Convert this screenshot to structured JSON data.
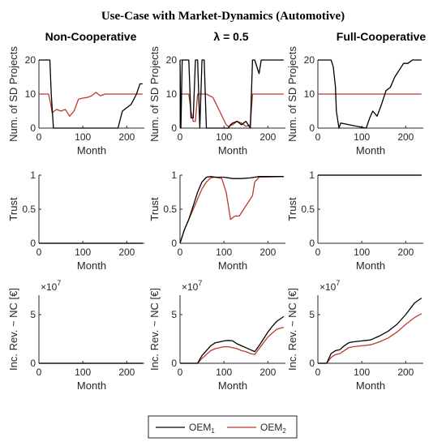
{
  "figure": {
    "title": "Use-Case with Market-Dynamics (Automotive)",
    "columns": [
      "Non-Cooperative",
      "λ = 0.5",
      "Full-Cooperative"
    ]
  },
  "legend": {
    "entries": [
      {
        "base": "OEM",
        "sub": "1",
        "color": "#000000"
      },
      {
        "base": "OEM",
        "sub": "2",
        "color": "#c0392b"
      }
    ]
  },
  "colors": {
    "oem1": "#000000",
    "oem2": "#c0392b",
    "axis": "#262626"
  },
  "chart_data": [
    {
      "type": "line",
      "id": "nc-projects",
      "row": 0,
      "col": 0,
      "xlabel": "Month",
      "ylabel": "Num. of SD Projects",
      "xlim": [
        0,
        240
      ],
      "ylim": [
        0,
        20
      ],
      "xticks": [
        0,
        100,
        200
      ],
      "yticks": [
        0,
        10,
        20
      ],
      "series": [
        {
          "name": "OEM1",
          "x": [
            0,
            25,
            28,
            33,
            180,
            190,
            210,
            222,
            230,
            236
          ],
          "y": [
            20,
            20,
            10,
            0,
            0,
            5,
            7,
            10,
            13,
            13
          ]
        },
        {
          "name": "OEM2",
          "x": [
            0,
            22,
            27,
            30,
            40,
            50,
            60,
            70,
            80,
            90,
            100,
            110,
            120,
            130,
            140,
            150,
            160,
            236
          ],
          "y": [
            10,
            10,
            7,
            4.5,
            5.5,
            5,
            5.5,
            3.5,
            5,
            8.5,
            8.8,
            9,
            9.5,
            10.5,
            9.5,
            10,
            10,
            10
          ]
        }
      ]
    },
    {
      "type": "line",
      "id": "l05-projects",
      "row": 0,
      "col": 1,
      "xlabel": "Month",
      "ylabel": "Num. of SD Projects",
      "xlim": [
        0,
        240
      ],
      "ylim": [
        0,
        20
      ],
      "xticks": [
        0,
        100,
        200
      ],
      "yticks": [
        0,
        10,
        20
      ],
      "series": [
        {
          "name": "OEM1",
          "x": [
            0,
            2,
            5,
            10,
            20,
            25,
            30,
            35,
            40,
            45,
            50,
            55,
            60,
            65,
            70,
            110,
            115,
            120,
            130,
            140,
            150,
            160,
            165,
            170,
            180,
            185,
            195,
            236
          ],
          "y": [
            20,
            0,
            20,
            20,
            20,
            3,
            3,
            20,
            20,
            0,
            20,
            20,
            0,
            0,
            0,
            0,
            1,
            1.5,
            2,
            1,
            2,
            0,
            20,
            20,
            16,
            20,
            20,
            20
          ]
        },
        {
          "name": "OEM2",
          "x": [
            0,
            20,
            25,
            30,
            35,
            40,
            60,
            75,
            90,
            105,
            110,
            120,
            130,
            140,
            150,
            160,
            165,
            170,
            236
          ],
          "y": [
            10,
            10,
            5,
            2,
            2,
            10,
            10,
            9,
            5,
            1,
            0.5,
            1,
            2,
            1.5,
            0.5,
            1,
            10,
            10,
            10
          ]
        }
      ]
    },
    {
      "type": "line",
      "id": "fc-projects",
      "row": 0,
      "col": 2,
      "xlabel": "Month",
      "ylabel": "Num. of SD Projects",
      "xlim": [
        0,
        240
      ],
      "ylim": [
        0,
        20
      ],
      "xticks": [
        0,
        100,
        200
      ],
      "yticks": [
        0,
        10,
        20
      ],
      "series": [
        {
          "name": "OEM1",
          "x": [
            0,
            30,
            35,
            40,
            42,
            48,
            52,
            110,
            118,
            125,
            135,
            145,
            155,
            165,
            175,
            185,
            195,
            205,
            215,
            236
          ],
          "y": [
            20,
            20,
            18,
            12,
            5,
            0,
            1.5,
            0,
            3,
            5,
            3.5,
            7,
            11,
            12,
            15,
            17,
            19,
            19,
            20,
            20
          ]
        },
        {
          "name": "OEM2",
          "x": [
            0,
            236
          ],
          "y": [
            10,
            10
          ]
        }
      ]
    },
    {
      "type": "line",
      "id": "nc-trust",
      "row": 1,
      "col": 0,
      "xlabel": "Month",
      "ylabel": "Trust",
      "xlim": [
        0,
        240
      ],
      "ylim": [
        0,
        1
      ],
      "xticks": [
        0,
        100,
        200
      ],
      "yticks": [
        0,
        0.5,
        1
      ],
      "series": [
        {
          "name": "OEM1",
          "x": [
            0,
            236
          ],
          "y": [
            0,
            0
          ]
        },
        {
          "name": "OEM2",
          "x": [
            0,
            236
          ],
          "y": [
            0,
            0
          ]
        }
      ]
    },
    {
      "type": "line",
      "id": "l05-trust",
      "row": 1,
      "col": 1,
      "xlabel": "Month",
      "ylabel": "Trust",
      "xlim": [
        0,
        240
      ],
      "ylim": [
        0,
        1
      ],
      "xticks": [
        0,
        100,
        200
      ],
      "yticks": [
        0,
        0.5,
        1
      ],
      "series": [
        {
          "name": "OEM1",
          "x": [
            0,
            10,
            20,
            30,
            40,
            50,
            60,
            70,
            80,
            100,
            120,
            140,
            160,
            180,
            236
          ],
          "y": [
            0,
            0.2,
            0.35,
            0.55,
            0.75,
            0.9,
            0.97,
            0.98,
            0.97,
            0.97,
            0.95,
            0.95,
            0.96,
            0.98,
            0.98
          ]
        },
        {
          "name": "OEM2",
          "x": [
            0,
            10,
            20,
            30,
            40,
            50,
            60,
            70,
            80,
            95,
            105,
            115,
            125,
            135,
            145,
            155,
            165,
            170,
            180,
            236
          ],
          "y": [
            0,
            0.2,
            0.35,
            0.5,
            0.65,
            0.8,
            0.9,
            0.96,
            0.97,
            0.95,
            0.75,
            0.35,
            0.4,
            0.4,
            0.5,
            0.6,
            0.7,
            0.9,
            0.97,
            0.98
          ]
        }
      ]
    },
    {
      "type": "line",
      "id": "fc-trust",
      "row": 1,
      "col": 2,
      "xlabel": "Month",
      "ylabel": "Trust",
      "xlim": [
        0,
        240
      ],
      "ylim": [
        0,
        1
      ],
      "xticks": [
        0,
        100,
        200
      ],
      "yticks": [
        0,
        0.5,
        1
      ],
      "series": [
        {
          "name": "OEM1",
          "x": [
            0,
            236
          ],
          "y": [
            1,
            1
          ]
        },
        {
          "name": "OEM2",
          "x": [
            0,
            236
          ],
          "y": [
            1,
            1
          ]
        }
      ]
    },
    {
      "type": "line",
      "id": "nc-revenue",
      "row": 2,
      "col": 0,
      "xlabel": "Month",
      "ylabel": "Inc. Rev. ~ NC [€]",
      "xlim": [
        0,
        240
      ],
      "ylim": [
        0,
        7
      ],
      "xticks": [
        0,
        100,
        200
      ],
      "yticks": [
        0,
        5
      ],
      "scale_exponent": {
        "base": "×10",
        "power": "7"
      },
      "series": [
        {
          "name": "OEM1",
          "x": [
            0,
            236
          ],
          "y": [
            0,
            0
          ]
        },
        {
          "name": "OEM2",
          "x": [
            0,
            236
          ],
          "y": [
            0,
            0
          ]
        }
      ]
    },
    {
      "type": "line",
      "id": "l05-revenue",
      "row": 2,
      "col": 1,
      "xlabel": "Month",
      "ylabel": "Inc. Rev. ~ NC [€]",
      "xlim": [
        0,
        240
      ],
      "ylim": [
        0,
        7
      ],
      "xticks": [
        0,
        100,
        200
      ],
      "yticks": [
        0,
        5
      ],
      "scale_exponent": {
        "base": "×10",
        "power": "7"
      },
      "series": [
        {
          "name": "OEM1",
          "x": [
            0,
            40,
            50,
            60,
            70,
            80,
            90,
            100,
            110,
            120,
            130,
            140,
            150,
            160,
            170,
            180,
            190,
            200,
            210,
            220,
            236
          ],
          "y": [
            0,
            0,
            0.8,
            1.3,
            1.8,
            2.1,
            2.2,
            2.3,
            2.35,
            2.3,
            2.0,
            1.8,
            1.6,
            1.4,
            1.2,
            1.8,
            2.5,
            3.2,
            3.8,
            4.3,
            4.8
          ]
        },
        {
          "name": "OEM2",
          "x": [
            0,
            40,
            50,
            60,
            70,
            80,
            90,
            100,
            110,
            120,
            130,
            140,
            150,
            160,
            170,
            180,
            190,
            200,
            210,
            220,
            236
          ],
          "y": [
            0,
            0,
            0.5,
            0.9,
            1.3,
            1.5,
            1.6,
            1.7,
            1.7,
            1.6,
            1.5,
            1.3,
            1.2,
            1.0,
            0.9,
            1.5,
            2.1,
            2.7,
            3.1,
            3.5,
            3.7
          ]
        }
      ]
    },
    {
      "type": "line",
      "id": "fc-revenue",
      "row": 2,
      "col": 2,
      "xlabel": "Month",
      "ylabel": "Inc. Rev. ~ NC [€]",
      "xlim": [
        0,
        240
      ],
      "ylim": [
        0,
        7
      ],
      "xticks": [
        0,
        100,
        200
      ],
      "yticks": [
        0,
        5
      ],
      "scale_exponent": {
        "base": "×10",
        "power": "7"
      },
      "series": [
        {
          "name": "OEM1",
          "x": [
            0,
            20,
            30,
            40,
            50,
            60,
            70,
            80,
            100,
            120,
            140,
            160,
            180,
            200,
            220,
            236
          ],
          "y": [
            0,
            0,
            1.0,
            1.3,
            1.4,
            1.8,
            2.1,
            2.2,
            2.3,
            2.4,
            2.8,
            3.3,
            4.0,
            5.0,
            6.2,
            6.7
          ]
        },
        {
          "name": "OEM2",
          "x": [
            0,
            20,
            30,
            40,
            50,
            60,
            70,
            80,
            100,
            120,
            140,
            160,
            180,
            200,
            220,
            236
          ],
          "y": [
            0,
            0,
            0.6,
            0.9,
            1.0,
            1.3,
            1.6,
            1.7,
            1.8,
            1.9,
            2.2,
            2.6,
            3.2,
            4.0,
            4.7,
            5.1
          ]
        }
      ]
    }
  ]
}
